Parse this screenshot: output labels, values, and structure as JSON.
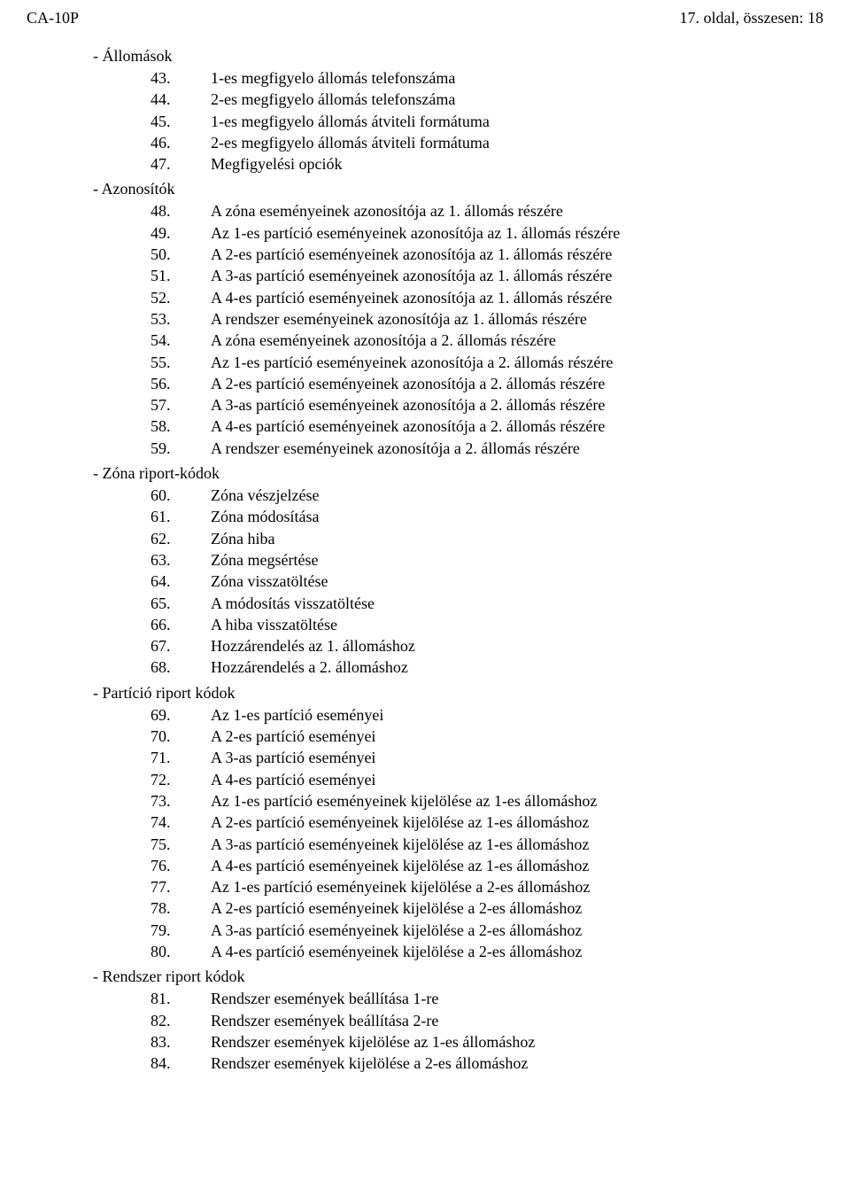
{
  "header": {
    "left": "CA-10P",
    "right": "17. oldal, összesen: 18"
  },
  "sections": [
    {
      "title": "Állomások",
      "items": [
        {
          "n": "43.",
          "t": "1-es megfigyelo állomás telefonszáma"
        },
        {
          "n": "44.",
          "t": "2-es megfigyelo állomás telefonszáma"
        },
        {
          "n": "45.",
          "t": "1-es megfigyelo állomás átviteli formátuma"
        },
        {
          "n": "46.",
          "t": "2-es megfigyelo állomás átviteli formátuma"
        },
        {
          "n": "47.",
          "t": "Megfigyelési opciók"
        }
      ]
    },
    {
      "title": "Azonosítók",
      "items": [
        {
          "n": "48.",
          "t": "A zóna eseményeinek azonosítója az 1. állomás részére"
        },
        {
          "n": "49.",
          "t": "Az 1-es partíció eseményeinek azonosítója az 1. állomás részére"
        },
        {
          "n": "50.",
          "t": "A 2-es partíció eseményeinek azonosítója az 1. állomás részére"
        },
        {
          "n": "51.",
          "t": "A 3-as partíció eseményeinek azonosítója az 1. állomás részére"
        },
        {
          "n": "52.",
          "t": "A 4-es partíció eseményeinek azonosítója az 1. állomás részére"
        },
        {
          "n": "53.",
          "t": "A rendszer eseményeinek azonosítója az 1. állomás részére"
        },
        {
          "n": "54.",
          "t": "A zóna eseményeinek azonosítója a 2. állomás részére"
        },
        {
          "n": "55.",
          "t": "Az 1-es partíció eseményeinek azonosítója a 2. állomás részére"
        },
        {
          "n": "56.",
          "t": "A 2-es partíció eseményeinek azonosítója a 2. állomás részére"
        },
        {
          "n": "57.",
          "t": "A 3-as partíció eseményeinek azonosítója a 2. állomás részére"
        },
        {
          "n": "58.",
          "t": "A 4-es partíció eseményeinek azonosítója a 2. állomás részére"
        },
        {
          "n": "59.",
          "t": "A rendszer eseményeinek azonosítója a 2. állomás részére"
        }
      ]
    },
    {
      "title": "Zóna riport-kódok",
      "items": [
        {
          "n": "60.",
          "t": "Zóna vészjelzése"
        },
        {
          "n": "61.",
          "t": "Zóna módosítása"
        },
        {
          "n": "62.",
          "t": "Zóna hiba"
        },
        {
          "n": "63.",
          "t": "Zóna megsértése"
        },
        {
          "n": "64.",
          "t": "Zóna visszatöltése"
        },
        {
          "n": "65.",
          "t": "A módosítás visszatöltése"
        },
        {
          "n": "66.",
          "t": "A hiba visszatöltése"
        },
        {
          "n": "67.",
          "t": "Hozzárendelés az 1. állomáshoz"
        },
        {
          "n": "68.",
          "t": "Hozzárendelés a 2. állomáshoz"
        }
      ]
    },
    {
      "title": "Partíció riport kódok",
      "items": [
        {
          "n": "69.",
          "t": "Az 1-es partíció eseményei"
        },
        {
          "n": "70.",
          "t": "A 2-es partíció eseményei"
        },
        {
          "n": "71.",
          "t": "A 3-as partíció eseményei"
        },
        {
          "n": "72.",
          "t": "A 4-es partíció eseményei"
        },
        {
          "n": "73.",
          "t": "Az 1-es partíció eseményeinek kijelölése az 1-es állomáshoz"
        },
        {
          "n": "74.",
          "t": "A 2-es partíció eseményeinek kijelölése az 1-es állomáshoz"
        },
        {
          "n": "75.",
          "t": "A 3-as partíció eseményeinek kijelölése az 1-es állomáshoz"
        },
        {
          "n": "76.",
          "t": "A 4-es partíció eseményeinek kijelölése az 1-es állomáshoz"
        },
        {
          "n": "77.",
          "t": "Az 1-es partíció eseményeinek kijelölése a 2-es állomáshoz"
        },
        {
          "n": "78.",
          "t": "A 2-es partíció eseményeinek kijelölése a 2-es állomáshoz"
        },
        {
          "n": "79.",
          "t": "A 3-as partíció eseményeinek kijelölése a 2-es állomáshoz"
        },
        {
          "n": "80.",
          "t": "A 4-es partíció eseményeinek kijelölése a 2-es állomáshoz"
        }
      ]
    },
    {
      "title": "Rendszer riport kódok",
      "items": [
        {
          "n": "81.",
          "t": "Rendszer események beállítása 1-re"
        },
        {
          "n": "82.",
          "t": "Rendszer események beállítása 2-re"
        },
        {
          "n": "83.",
          "t": "Rendszer események kijelölése az 1-es állomáshoz"
        },
        {
          "n": "84.",
          "t": "Rendszer események kijelölése a 2-es állomáshoz"
        }
      ]
    }
  ]
}
